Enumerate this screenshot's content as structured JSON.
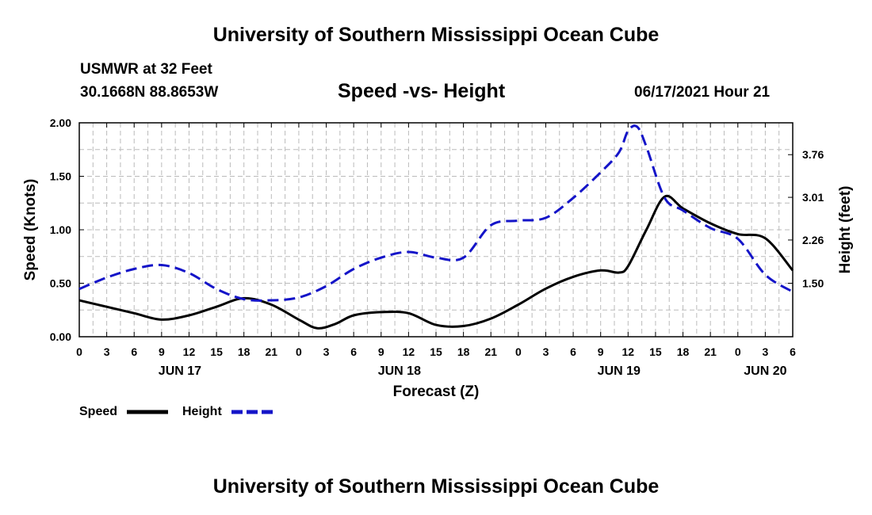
{
  "header": {
    "title": "University of Southern Mississippi Ocean Cube",
    "station": "USMWR at 32 Feet",
    "coords": "30.1668N  88.8653W",
    "chart_title": "Speed -vs- Height",
    "timestamp": "06/17/2021 Hour 21"
  },
  "footer": {
    "title": "University of Southern Mississippi Ocean Cube"
  },
  "colors": {
    "speed": "#000000",
    "height": "#1414c8",
    "grid": "#bbbbbb"
  },
  "chart_data": {
    "type": "line",
    "title": "Speed -vs- Height",
    "xlabel": "Forecast (Z)",
    "ylabel": "Speed (Knots)",
    "y2label": "Height (feet)",
    "xlim": [
      0,
      78
    ],
    "ylim": [
      0,
      2.0
    ],
    "y2lim": [
      0.56,
      4.32
    ],
    "x_ticks": [
      0,
      3,
      6,
      9,
      12,
      15,
      18,
      21,
      24,
      27,
      30,
      33,
      36,
      39,
      42,
      45,
      48,
      51,
      54,
      57,
      60,
      63,
      66,
      69,
      72,
      75,
      78
    ],
    "x_tick_labels": [
      "0",
      "3",
      "6",
      "9",
      "12",
      "15",
      "18",
      "21",
      "0",
      "3",
      "6",
      "9",
      "12",
      "15",
      "18",
      "21",
      "0",
      "3",
      "6",
      "9",
      "12",
      "15",
      "18",
      "21",
      "0",
      "3",
      "6"
    ],
    "date_labels": [
      {
        "x": 11,
        "label": "JUN 17"
      },
      {
        "x": 35,
        "label": "JUN 18"
      },
      {
        "x": 59,
        "label": "JUN 19"
      },
      {
        "x": 75,
        "label": "JUN 20"
      }
    ],
    "y_ticks": [
      0,
      0.5,
      1.0,
      1.5,
      2.0
    ],
    "y_tick_labels": [
      "0.00",
      "0.50",
      "1.00",
      "1.50",
      "2.00"
    ],
    "y2_ticks": [
      1.5,
      2.26,
      3.01,
      3.76
    ],
    "y2_tick_labels": [
      "1.50",
      "2.26",
      "3.01",
      "3.76"
    ],
    "grid": true,
    "legend_position": "bottom-left",
    "series": [
      {
        "name": "Speed",
        "axis": "left",
        "style": "solid",
        "x": [
          0,
          3,
          6,
          9,
          12,
          15,
          18,
          21,
          24,
          26,
          28,
          30,
          33,
          36,
          39,
          42,
          45,
          48,
          51,
          54,
          57,
          59,
          60,
          62,
          64,
          66,
          69,
          72,
          75,
          78
        ],
        "values": [
          0.34,
          0.28,
          0.22,
          0.16,
          0.2,
          0.28,
          0.36,
          0.3,
          0.16,
          0.08,
          0.12,
          0.2,
          0.23,
          0.22,
          0.11,
          0.1,
          0.17,
          0.3,
          0.45,
          0.56,
          0.62,
          0.6,
          0.66,
          1.0,
          1.31,
          1.2,
          1.06,
          0.96,
          0.92,
          0.62
        ]
      },
      {
        "name": "Height",
        "axis": "right",
        "style": "dashed",
        "x": [
          0,
          3,
          6,
          9,
          12,
          15,
          18,
          21,
          24,
          27,
          30,
          33,
          36,
          39,
          42,
          45,
          48,
          51,
          54,
          57,
          59,
          60,
          61,
          62,
          64,
          66,
          69,
          72,
          75,
          78
        ],
        "values": [
          1.4,
          1.6,
          1.75,
          1.82,
          1.68,
          1.4,
          1.22,
          1.2,
          1.25,
          1.45,
          1.75,
          1.95,
          2.05,
          1.95,
          1.95,
          2.52,
          2.6,
          2.65,
          3.0,
          3.45,
          3.8,
          4.18,
          4.25,
          3.9,
          3.0,
          2.78,
          2.47,
          2.28,
          1.65,
          1.35
        ]
      }
    ],
    "legend": [
      {
        "label": "Speed",
        "style": "solid"
      },
      {
        "label": "Height",
        "style": "dashed"
      }
    ]
  }
}
